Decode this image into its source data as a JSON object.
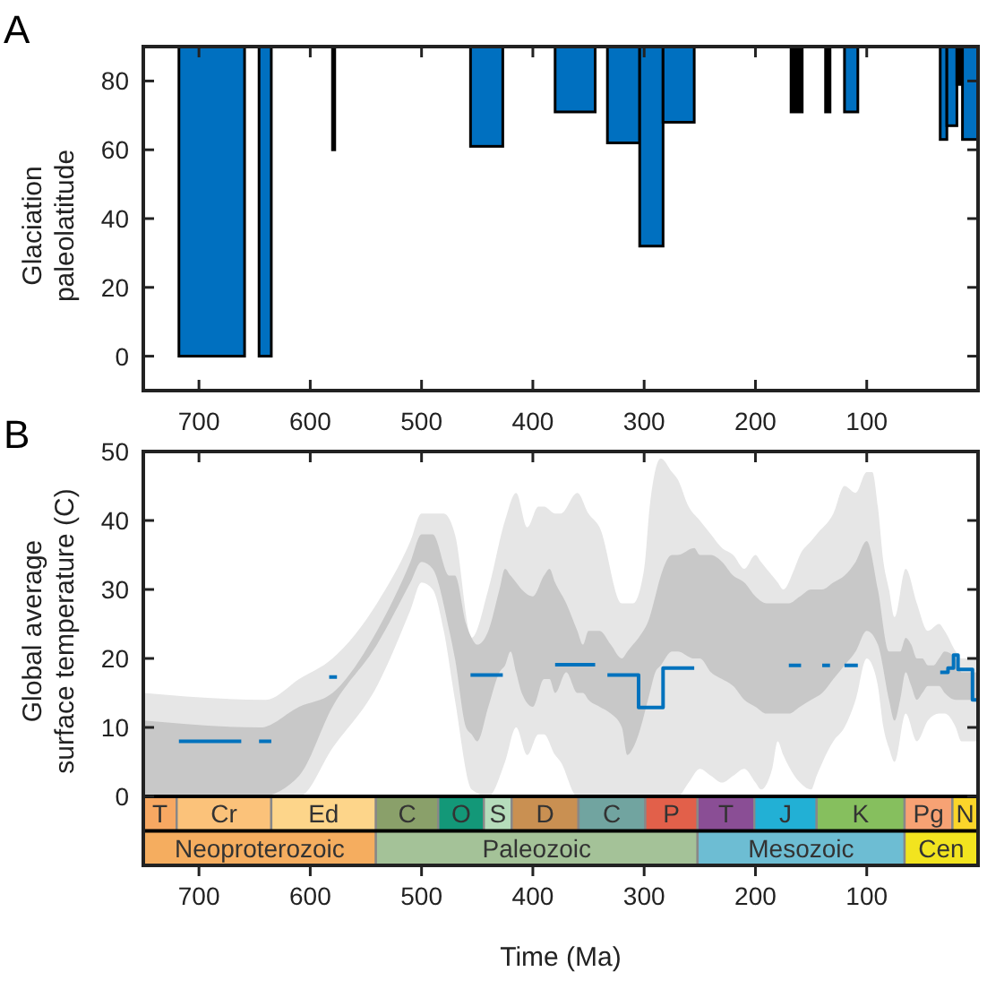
{
  "chart_data": [
    {
      "type": "histogram",
      "title": "A",
      "ylabel": "Glaciation\npaleolatitude",
      "xlim": [
        750,
        0
      ],
      "xticks": [
        700,
        600,
        500,
        400,
        300,
        200,
        100
      ],
      "ylim": [
        -10,
        90
      ],
      "yticks": [
        0,
        20,
        40,
        60,
        80
      ],
      "bins": [
        718,
        659,
        646,
        635,
        580,
        578,
        456,
        427,
        380,
        344,
        333,
        304,
        283,
        255,
        168,
        158,
        137,
        133,
        120,
        108,
        34,
        28,
        19,
        14,
        0
      ],
      "base": [
        90,
        null,
        90,
        null,
        90,
        null,
        90,
        null,
        90,
        null,
        90,
        90,
        90,
        null,
        90,
        null,
        90,
        null,
        90,
        null,
        90,
        90,
        90,
        90
      ],
      "values": [
        -90,
        null,
        -90,
        null,
        -30,
        null,
        -29,
        null,
        -19,
        null,
        -28,
        -58,
        -22,
        null,
        -19,
        null,
        -19,
        null,
        -19,
        null,
        -27,
        -23,
        -11,
        -27
      ],
      "colors": [
        "#0070c0",
        null,
        "#0070c0",
        null,
        "#000000",
        null,
        "#0070c0",
        null,
        "#0070c0",
        null,
        "#0070c0",
        "#0070c0",
        "#0070c0",
        null,
        "#000000",
        null,
        "#000000",
        null,
        "#0070c0",
        null,
        "#0070c0",
        "#0070c0",
        "#000000",
        "#0070c0"
      ]
    },
    {
      "type": "line",
      "title": "B",
      "ylabel": "Global average\nsurface temperature (C)",
      "xlabel": "Time (Ma)",
      "xlim": [
        750,
        0
      ],
      "xticks": [
        700,
        600,
        500,
        400,
        300,
        200,
        100
      ],
      "ylim": [
        -10,
        50
      ],
      "yticks": [
        0,
        10,
        20,
        30,
        40,
        50
      ],
      "series": [
        {
          "type": "line",
          "color": "#e6e6e6",
          "values": [
            null,
            null,
            null,
            null,
            null,
            null,
            null,
            null,
            null,
            null,
            null,
            null,
            null,
            null,
            null,
            null,
            null,
            null,
            null,
            null,
            null,
            null,
            null,
            null,
            null,
            null,
            null,
            null,
            null,
            null,
            null,
            null,
            null,
            null,
            null,
            null,
            null,
            null,
            null,
            null,
            null,
            null,
            null,
            null,
            null,
            null,
            null,
            null,
            null,
            null,
            null,
            null,
            null,
            null,
            null,
            null,
            null,
            null,
            null,
            null,
            null
          ],
          "x": [
            750,
            640,
            610,
            580,
            540,
            510,
            500,
            490,
            480,
            470,
            455,
            440,
            425,
            415,
            405,
            395,
            390,
            380,
            375,
            360,
            350,
            340,
            320,
            310,
            300,
            295,
            285,
            275,
            270,
            260,
            250,
            240,
            230,
            220,
            210,
            200,
            195,
            185,
            180,
            175,
            165,
            160,
            150,
            145,
            130,
            120,
            110,
            100,
            95,
            90,
            85,
            80,
            75,
            65,
            55,
            45,
            35,
            30,
            20,
            15,
            0
          ],
          "lower": [
            0,
            0,
            0,
            7,
            16,
            27,
            31,
            30,
            24,
            14,
            1,
            0,
            5,
            10,
            6,
            9,
            9,
            6,
            5,
            0,
            0,
            0,
            0,
            0,
            0,
            0,
            0,
            0,
            0,
            2,
            4,
            3,
            2,
            3,
            4,
            2,
            1,
            4,
            8,
            6,
            3,
            2,
            1,
            3,
            8,
            10,
            14,
            20,
            19,
            16,
            10,
            7,
            5,
            12,
            8,
            11,
            12,
            12,
            10,
            8,
            8
          ],
          "upper": [
            15,
            14,
            17,
            20,
            28,
            37,
            41,
            41,
            41,
            38,
            23,
            30,
            40,
            44,
            39,
            42,
            42,
            41,
            41,
            44,
            41,
            39,
            28,
            28,
            33,
            42,
            49,
            47,
            46,
            42,
            40,
            38,
            36,
            35,
            33,
            35,
            34,
            32,
            31,
            30,
            33,
            35,
            37,
            38,
            41,
            45,
            44,
            47,
            47,
            42,
            34,
            30,
            26,
            33,
            28,
            24,
            25,
            24,
            21,
            20,
            20
          ]
        },
        {
          "type": "line",
          "color": "#c8c8c8",
          "values": [
            null,
            null,
            null,
            null,
            null,
            null,
            null,
            null,
            null,
            null,
            null,
            null,
            null,
            null,
            null,
            null,
            null,
            null,
            null,
            null,
            null,
            null,
            null,
            null,
            null,
            null,
            null,
            null,
            null,
            null,
            null,
            null,
            null,
            null,
            null,
            null,
            null,
            null,
            null,
            null,
            null,
            null,
            null,
            null,
            null,
            null,
            null,
            null,
            null,
            null,
            null,
            null,
            null,
            null,
            null,
            null,
            null,
            null,
            null,
            null,
            null,
            null,
            null,
            null,
            null,
            null,
            null,
            null,
            null,
            null
          ],
          "x": [
            750,
            645,
            610,
            580,
            540,
            510,
            500,
            490,
            475,
            470,
            460,
            455,
            450,
            440,
            430,
            425,
            420,
            415,
            410,
            400,
            390,
            385,
            380,
            370,
            360,
            355,
            350,
            340,
            330,
            320,
            315,
            310,
            305,
            295,
            290,
            285,
            275,
            270,
            255,
            250,
            240,
            230,
            220,
            210,
            200,
            190,
            180,
            170,
            160,
            150,
            140,
            130,
            120,
            110,
            100,
            90,
            80,
            75,
            70,
            65,
            60,
            55,
            50,
            45,
            40,
            35,
            30,
            20,
            15,
            0
          ],
          "lower": [
            0,
            0,
            3,
            13,
            22,
            31,
            34,
            33,
            24,
            20,
            10,
            9,
            8,
            13,
            18,
            19,
            21,
            18,
            15,
            13,
            17,
            17,
            15,
            18,
            15,
            15,
            14,
            13,
            12,
            10,
            6,
            7,
            9,
            15,
            18,
            19,
            21,
            21,
            20,
            20,
            18,
            17,
            16,
            14,
            13,
            12,
            12,
            12,
            13,
            14,
            15,
            17,
            19,
            21,
            24,
            22,
            14,
            11,
            14,
            18,
            16,
            14,
            15,
            16,
            16,
            16,
            15,
            14,
            14,
            14
          ],
          "upper": [
            11,
            10,
            13,
            15,
            24,
            34,
            38,
            38,
            32,
            32,
            25,
            23,
            22,
            24,
            30,
            33,
            32,
            31,
            30,
            29,
            32,
            33,
            31,
            28,
            24,
            22,
            24,
            24,
            22,
            20,
            21,
            22,
            23,
            26,
            29,
            32,
            35,
            35,
            36,
            35,
            35,
            34,
            32,
            31,
            29,
            28,
            28,
            28,
            29,
            30,
            30,
            31,
            32,
            34,
            37,
            30,
            21,
            21,
            21,
            23,
            22,
            20,
            20,
            19,
            19,
            20,
            21,
            20,
            18,
            18
          ]
        },
        {
          "type": "line",
          "color": "#0072bd",
          "x": [
            718,
            662,
            655,
            646,
            635,
            630,
            583,
            576,
            570,
            456,
            427,
            420,
            380,
            344,
            340,
            333,
            305,
            305,
            283,
            283,
            255,
            250,
            170,
            159,
            150,
            140,
            133,
            125,
            120,
            108,
            100,
            34,
            27,
            27,
            22,
            22,
            18,
            18,
            5,
            5,
            0
          ],
          "values": [
            8,
            8,
            null,
            8,
            8,
            null,
            17.3,
            17.3,
            null,
            17.6,
            17.6,
            null,
            19.1,
            19.1,
            null,
            17.6,
            17.6,
            12.9,
            12.9,
            18.6,
            18.6,
            null,
            19,
            19,
            null,
            19,
            19,
            null,
            19,
            19,
            null,
            18,
            18,
            18.6,
            18.6,
            20.5,
            20.5,
            18.4,
            18.4,
            14,
            14
          ]
        }
      ],
      "bands": [
        {
          "axis": "x",
          "from": 750,
          "to": 720,
          "label": "T",
          "color": "#f7a862"
        },
        {
          "axis": "x",
          "from": 720,
          "to": 635,
          "label": "Cr",
          "color": "#fbc27a"
        },
        {
          "axis": "x",
          "from": 635,
          "to": 541,
          "label": "Ed",
          "color": "#fdd58a"
        },
        {
          "axis": "x",
          "from": 541,
          "to": 485,
          "label": "C",
          "color": "#8aa06a"
        },
        {
          "axis": "x",
          "from": 485,
          "to": 444,
          "label": "O",
          "color": "#139878"
        },
        {
          "axis": "x",
          "from": 444,
          "to": 419,
          "label": "S",
          "color": "#b5dcbb"
        },
        {
          "axis": "x",
          "from": 419,
          "to": 359,
          "label": "D",
          "color": "#c99052"
        },
        {
          "axis": "x",
          "from": 359,
          "to": 299,
          "label": "C",
          "color": "#71a4a0"
        },
        {
          "axis": "x",
          "from": 299,
          "to": 252,
          "label": "P",
          "color": "#e2604a"
        },
        {
          "axis": "x",
          "from": 252,
          "to": 201,
          "label": "T",
          "color": "#8a4e95"
        },
        {
          "axis": "x",
          "from": 201,
          "to": 145,
          "label": "J",
          "color": "#22b0d5"
        },
        {
          "axis": "x",
          "from": 145,
          "to": 66,
          "label": "K",
          "color": "#86bf5e"
        },
        {
          "axis": "x",
          "from": 66,
          "to": 23,
          "label": "Pg",
          "color": "#f7a274"
        },
        {
          "axis": "x",
          "from": 23,
          "to": 0,
          "label": "N",
          "color": "#fbd52a"
        },
        {
          "axis": "x",
          "from": 750,
          "to": 541,
          "label": "Neoproterozoic",
          "color": "#f5ad5f"
        },
        {
          "axis": "x",
          "from": 541,
          "to": 252,
          "label": "Paleozoic",
          "color": "#a4c298"
        },
        {
          "axis": "x",
          "from": 252,
          "to": 66,
          "label": "Mesozoic",
          "color": "#6dbdd3"
        },
        {
          "axis": "x",
          "from": 66,
          "to": 0,
          "label": "Cen",
          "color": "#f2e41f"
        }
      ]
    }
  ]
}
